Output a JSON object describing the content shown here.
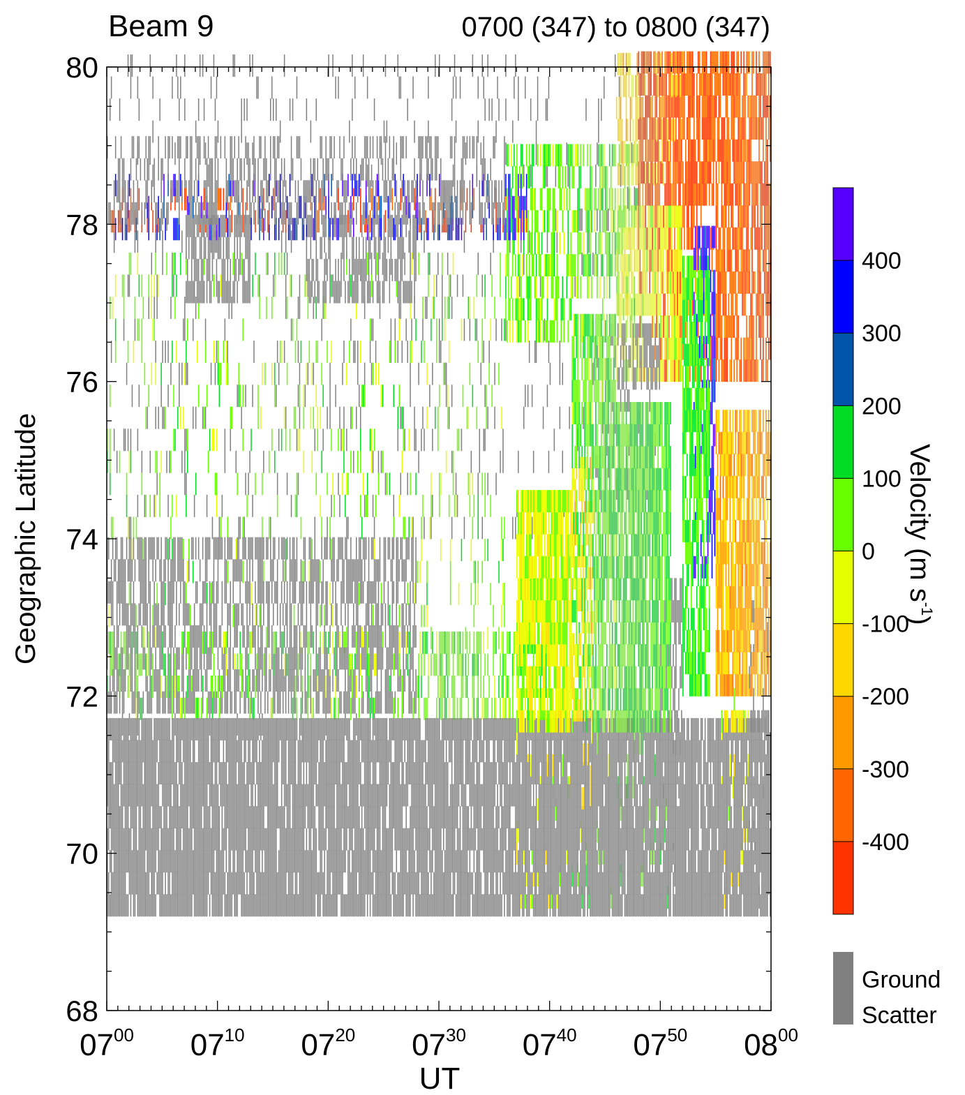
{
  "chart_data": {
    "type": "heatmap",
    "title_left": "Beam 9",
    "title_right": "0700 (347) to 0800 (347)",
    "xlabel": "UT",
    "ylabel": "Geographic Latitude",
    "x_unit": "minutes after 07:00 UT",
    "xlim": [
      0,
      60
    ],
    "ylim": [
      68,
      80
    ],
    "x_ticks": [
      {
        "value": 0,
        "label": "07",
        "sup": "00"
      },
      {
        "value": 10,
        "label": "07",
        "sup": "10"
      },
      {
        "value": 20,
        "label": "07",
        "sup": "20"
      },
      {
        "value": 30,
        "label": "07",
        "sup": "30"
      },
      {
        "value": 40,
        "label": "07",
        "sup": "40"
      },
      {
        "value": 50,
        "label": "07",
        "sup": "50"
      },
      {
        "value": 60,
        "label": "08",
        "sup": "00"
      }
    ],
    "y_ticks": [
      "68",
      "70",
      "72",
      "74",
      "76",
      "78",
      "80"
    ],
    "colorbar": {
      "label": "Velocity (m s",
      "label_sup": "-1",
      "label_end": ")",
      "vmin": -500,
      "vmax": 500,
      "tick_labels": [
        "400",
        "300",
        "200",
        "100",
        "0",
        "-100",
        "-200",
        "-300",
        "-400"
      ],
      "colors": [
        "#ff3300",
        "#ff6600",
        "#ff9900",
        "#ffd700",
        "#e5ff00",
        "#66ff00",
        "#00dd22",
        "#0055aa",
        "#0000ff",
        "#5500ff"
      ]
    },
    "ground_scatter": {
      "color": "#808080",
      "label_1": "Ground",
      "label_2": "Scatter"
    },
    "regions": [
      {
        "x": [
          0,
          60
        ],
        "y": [
          69.2,
          71.5
        ],
        "value": "ground",
        "density": 0.88
      },
      {
        "x": [
          0,
          28
        ],
        "y": [
          71.5,
          74.0
        ],
        "value": "ground",
        "density": 0.55
      },
      {
        "x": [
          7,
          13
        ],
        "y": [
          77.0,
          78.0
        ],
        "value": "ground",
        "density": 0.6
      },
      {
        "x": [
          18,
          28
        ],
        "y": [
          77.0,
          78.0
        ],
        "value": "ground",
        "density": 0.5
      },
      {
        "x": [
          0,
          36
        ],
        "y": [
          78.0,
          79.0
        ],
        "value": "ground",
        "density": 0.35
      },
      {
        "x": [
          0,
          40
        ],
        "y": [
          71.7,
          72.6
        ],
        "value": 60,
        "density": 0.45
      },
      {
        "x": [
          0,
          38
        ],
        "y": [
          77.8,
          78.4
        ],
        "value": 350,
        "density": 0.3
      },
      {
        "x": [
          0,
          38
        ],
        "y": [
          77.9,
          78.3
        ],
        "value": -420,
        "density": 0.25
      },
      {
        "x": [
          37,
          42
        ],
        "y": [
          69.3,
          74.6
        ],
        "value": -40,
        "density": 0.9
      },
      {
        "x": [
          42,
          44
        ],
        "y": [
          70.0,
          75.0
        ],
        "value": -120,
        "density": 0.5
      },
      {
        "x": [
          42,
          46
        ],
        "y": [
          69.3,
          76.8
        ],
        "value": 80,
        "density": 0.75
      },
      {
        "x": [
          46,
          51
        ],
        "y": [
          69.3,
          75.5
        ],
        "value": 90,
        "density": 0.85
      },
      {
        "x": [
          44,
          50
        ],
        "y": [
          74.5,
          76.5
        ],
        "value": "ground",
        "density": 0.55
      },
      {
        "x": [
          46,
          52
        ],
        "y": [
          76.0,
          78.0
        ],
        "value": -60,
        "density": 0.7
      },
      {
        "x": [
          52,
          54.5
        ],
        "y": [
          72.0,
          77.5
        ],
        "value": 110,
        "density": 0.75
      },
      {
        "x": [
          53,
          55
        ],
        "y": [
          73.5,
          77.8
        ],
        "value": 380,
        "density": 0.6
      },
      {
        "x": [
          50,
          52
        ],
        "y": [
          69.3,
          73.5
        ],
        "value": "ground",
        "density": 0.6
      },
      {
        "x": [
          55,
          60
        ],
        "y": [
          72.0,
          75.5
        ],
        "value": -230,
        "density": 0.8
      },
      {
        "x": [
          55.5,
          58
        ],
        "y": [
          69.3,
          72.0
        ],
        "value": -60,
        "density": 0.8
      },
      {
        "x": [
          58,
          60
        ],
        "y": [
          69.3,
          73.0
        ],
        "value": "ground",
        "density": 0.6
      },
      {
        "x": [
          48,
          60
        ],
        "y": [
          76.0,
          80.0
        ],
        "value": -380,
        "density": 0.75
      },
      {
        "x": [
          46,
          52
        ],
        "y": [
          78.5,
          80.0
        ],
        "value": -150,
        "density": 0.6
      },
      {
        "x": [
          36,
          48
        ],
        "y": [
          76.5,
          78.8
        ],
        "value": 60,
        "density": 0.5
      },
      {
        "x": [
          0,
          36
        ],
        "y": [
          72.6,
          77.5
        ],
        "value": 40,
        "density": 0.1
      },
      {
        "x": [
          0,
          48
        ],
        "y": [
          74.0,
          80.0
        ],
        "value": "ground",
        "density": 0.08
      }
    ]
  }
}
